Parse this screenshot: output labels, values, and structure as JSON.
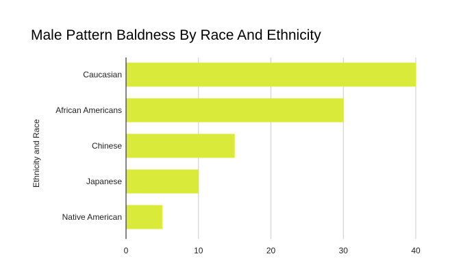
{
  "chart_data": {
    "type": "bar",
    "orientation": "horizontal",
    "title": "Male Pattern Baldness By Race And Ethnicity",
    "xlabel": "",
    "ylabel": "Ethnicity and Race",
    "categories": [
      "Caucasian",
      "African Americans",
      "Chinese",
      "Japanese",
      "Native American"
    ],
    "values": [
      40,
      30,
      15,
      10,
      5
    ],
    "xlim": [
      0,
      40
    ],
    "xticks": [
      0,
      10,
      20,
      30,
      40
    ],
    "grid": true,
    "legend": "none",
    "bar_color": "#d9ea3a",
    "grid_color": "#cccccc",
    "axis_color": "#333333"
  }
}
